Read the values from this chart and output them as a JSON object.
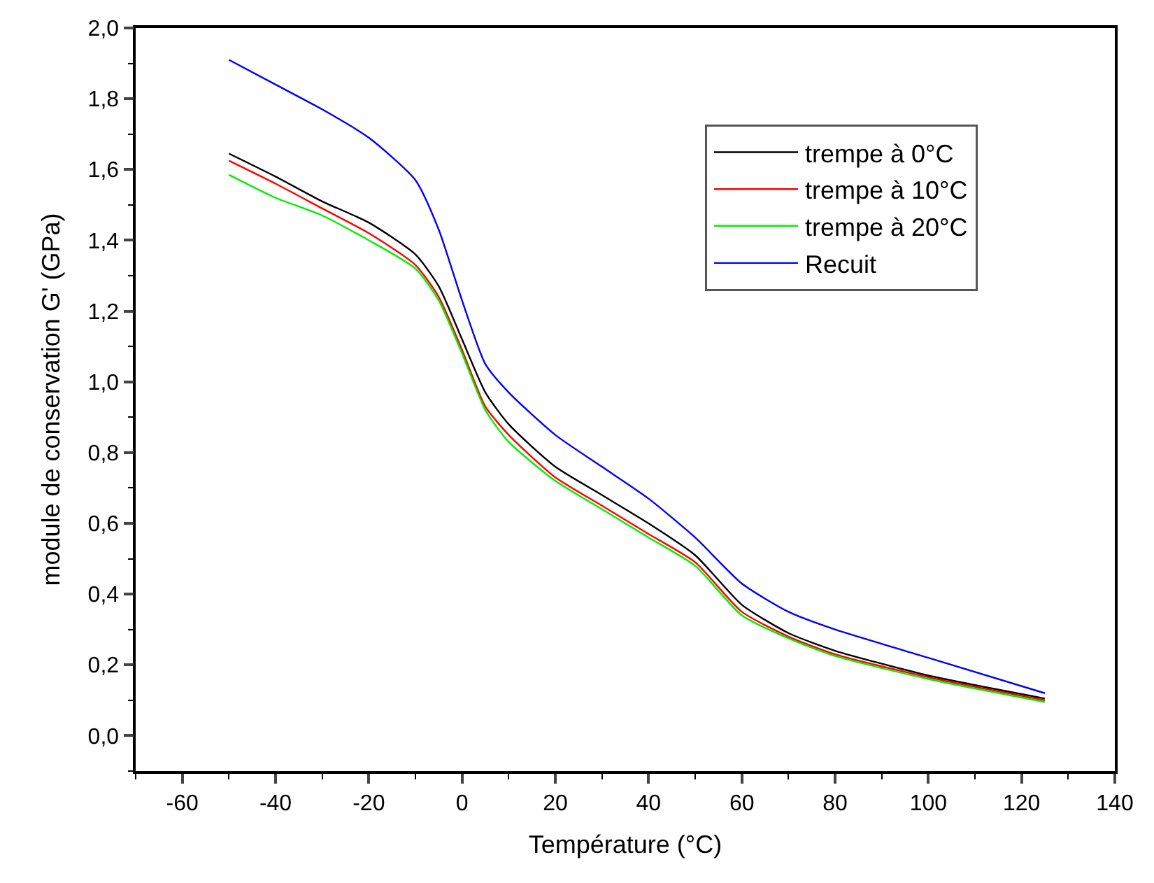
{
  "chart_data": {
    "type": "line",
    "xlabel": "Température (°C)",
    "ylabel": "module de conservation G' (GPa)",
    "x": [
      -50,
      -40,
      -30,
      -20,
      -10,
      -5,
      0,
      5,
      10,
      20,
      30,
      40,
      50,
      60,
      70,
      80,
      100,
      125
    ],
    "series": [
      {
        "name": "trempe à 0°C",
        "color": "#000000",
        "values": [
          1.645,
          1.58,
          1.51,
          1.45,
          1.36,
          1.27,
          1.12,
          0.97,
          0.88,
          0.76,
          0.68,
          0.6,
          0.51,
          0.37,
          0.29,
          0.24,
          0.17,
          0.105
        ]
      },
      {
        "name": "trempe à 10°C",
        "color": "#ff0000",
        "values": [
          1.625,
          1.56,
          1.49,
          1.42,
          1.33,
          1.24,
          1.09,
          0.93,
          0.85,
          0.73,
          0.65,
          0.57,
          0.49,
          0.35,
          0.28,
          0.23,
          0.165,
          0.1
        ]
      },
      {
        "name": "trempe à 20°C",
        "color": "#00ee00",
        "values": [
          1.585,
          1.52,
          1.47,
          1.4,
          1.32,
          1.23,
          1.08,
          0.92,
          0.83,
          0.72,
          0.64,
          0.56,
          0.48,
          0.34,
          0.275,
          0.225,
          0.16,
          0.095
        ]
      },
      {
        "name": "Recuit",
        "color": "#0000ff",
        "values": [
          1.91,
          1.84,
          1.77,
          1.69,
          1.57,
          1.43,
          1.23,
          1.05,
          0.97,
          0.85,
          0.76,
          0.67,
          0.56,
          0.43,
          0.35,
          0.3,
          0.22,
          0.12
        ]
      }
    ],
    "xlim": [
      -70,
      140
    ],
    "xticks": [
      -60,
      -40,
      -20,
      0,
      20,
      40,
      60,
      80,
      100,
      120,
      140
    ],
    "ylim": [
      -0.1,
      2.0
    ],
    "yticks": [
      {
        "value": 0,
        "label": "0,0"
      },
      {
        "value": 0.2,
        "label": "0,2"
      },
      {
        "value": 0.4,
        "label": "0,4"
      },
      {
        "value": 0.6,
        "label": "0,6"
      },
      {
        "value": 0.8,
        "label": "0,8"
      },
      {
        "value": 1.0,
        "label": "1,0"
      },
      {
        "value": 1.2,
        "label": "1,2"
      },
      {
        "value": 1.4,
        "label": "1,4"
      },
      {
        "value": 1.6,
        "label": "1,6"
      },
      {
        "value": 1.8,
        "label": "1,8"
      },
      {
        "value": 2.0,
        "label": "2,0"
      }
    ],
    "legend": "top right",
    "marker": "none",
    "line_style": "solid"
  }
}
